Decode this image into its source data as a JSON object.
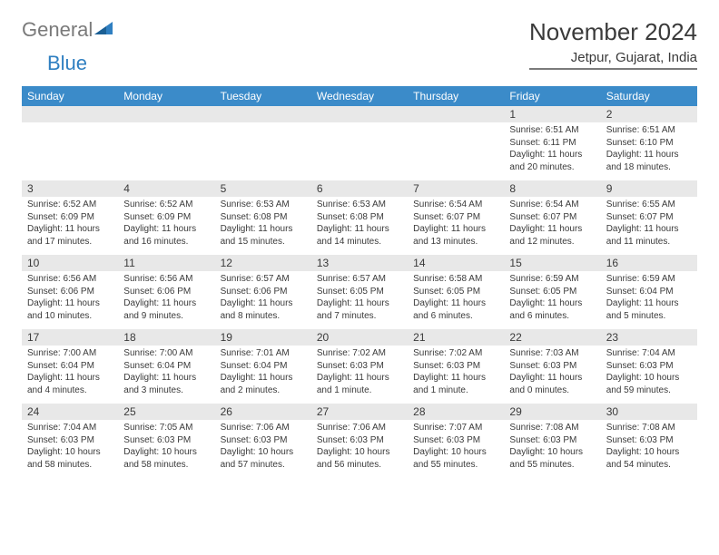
{
  "logo": {
    "word1": "General",
    "word2": "Blue"
  },
  "title": "November 2024",
  "location": "Jetpur, Gujarat, India",
  "colors": {
    "header_bg": "#3b8bc9",
    "header_text": "#ffffff",
    "daynum_bg": "#e8e8e8",
    "text": "#3a3a3a",
    "logo_gray": "#7a7a7a",
    "logo_blue": "#2f7fc1"
  },
  "weekdays": [
    "Sunday",
    "Monday",
    "Tuesday",
    "Wednesday",
    "Thursday",
    "Friday",
    "Saturday"
  ],
  "weeks": [
    [
      {
        "n": "",
        "sr": "",
        "ss": "",
        "dl": ""
      },
      {
        "n": "",
        "sr": "",
        "ss": "",
        "dl": ""
      },
      {
        "n": "",
        "sr": "",
        "ss": "",
        "dl": ""
      },
      {
        "n": "",
        "sr": "",
        "ss": "",
        "dl": ""
      },
      {
        "n": "",
        "sr": "",
        "ss": "",
        "dl": ""
      },
      {
        "n": "1",
        "sr": "Sunrise: 6:51 AM",
        "ss": "Sunset: 6:11 PM",
        "dl": "Daylight: 11 hours and 20 minutes."
      },
      {
        "n": "2",
        "sr": "Sunrise: 6:51 AM",
        "ss": "Sunset: 6:10 PM",
        "dl": "Daylight: 11 hours and 18 minutes."
      }
    ],
    [
      {
        "n": "3",
        "sr": "Sunrise: 6:52 AM",
        "ss": "Sunset: 6:09 PM",
        "dl": "Daylight: 11 hours and 17 minutes."
      },
      {
        "n": "4",
        "sr": "Sunrise: 6:52 AM",
        "ss": "Sunset: 6:09 PM",
        "dl": "Daylight: 11 hours and 16 minutes."
      },
      {
        "n": "5",
        "sr": "Sunrise: 6:53 AM",
        "ss": "Sunset: 6:08 PM",
        "dl": "Daylight: 11 hours and 15 minutes."
      },
      {
        "n": "6",
        "sr": "Sunrise: 6:53 AM",
        "ss": "Sunset: 6:08 PM",
        "dl": "Daylight: 11 hours and 14 minutes."
      },
      {
        "n": "7",
        "sr": "Sunrise: 6:54 AM",
        "ss": "Sunset: 6:07 PM",
        "dl": "Daylight: 11 hours and 13 minutes."
      },
      {
        "n": "8",
        "sr": "Sunrise: 6:54 AM",
        "ss": "Sunset: 6:07 PM",
        "dl": "Daylight: 11 hours and 12 minutes."
      },
      {
        "n": "9",
        "sr": "Sunrise: 6:55 AM",
        "ss": "Sunset: 6:07 PM",
        "dl": "Daylight: 11 hours and 11 minutes."
      }
    ],
    [
      {
        "n": "10",
        "sr": "Sunrise: 6:56 AM",
        "ss": "Sunset: 6:06 PM",
        "dl": "Daylight: 11 hours and 10 minutes."
      },
      {
        "n": "11",
        "sr": "Sunrise: 6:56 AM",
        "ss": "Sunset: 6:06 PM",
        "dl": "Daylight: 11 hours and 9 minutes."
      },
      {
        "n": "12",
        "sr": "Sunrise: 6:57 AM",
        "ss": "Sunset: 6:06 PM",
        "dl": "Daylight: 11 hours and 8 minutes."
      },
      {
        "n": "13",
        "sr": "Sunrise: 6:57 AM",
        "ss": "Sunset: 6:05 PM",
        "dl": "Daylight: 11 hours and 7 minutes."
      },
      {
        "n": "14",
        "sr": "Sunrise: 6:58 AM",
        "ss": "Sunset: 6:05 PM",
        "dl": "Daylight: 11 hours and 6 minutes."
      },
      {
        "n": "15",
        "sr": "Sunrise: 6:59 AM",
        "ss": "Sunset: 6:05 PM",
        "dl": "Daylight: 11 hours and 6 minutes."
      },
      {
        "n": "16",
        "sr": "Sunrise: 6:59 AM",
        "ss": "Sunset: 6:04 PM",
        "dl": "Daylight: 11 hours and 5 minutes."
      }
    ],
    [
      {
        "n": "17",
        "sr": "Sunrise: 7:00 AM",
        "ss": "Sunset: 6:04 PM",
        "dl": "Daylight: 11 hours and 4 minutes."
      },
      {
        "n": "18",
        "sr": "Sunrise: 7:00 AM",
        "ss": "Sunset: 6:04 PM",
        "dl": "Daylight: 11 hours and 3 minutes."
      },
      {
        "n": "19",
        "sr": "Sunrise: 7:01 AM",
        "ss": "Sunset: 6:04 PM",
        "dl": "Daylight: 11 hours and 2 minutes."
      },
      {
        "n": "20",
        "sr": "Sunrise: 7:02 AM",
        "ss": "Sunset: 6:03 PM",
        "dl": "Daylight: 11 hours and 1 minute."
      },
      {
        "n": "21",
        "sr": "Sunrise: 7:02 AM",
        "ss": "Sunset: 6:03 PM",
        "dl": "Daylight: 11 hours and 1 minute."
      },
      {
        "n": "22",
        "sr": "Sunrise: 7:03 AM",
        "ss": "Sunset: 6:03 PM",
        "dl": "Daylight: 11 hours and 0 minutes."
      },
      {
        "n": "23",
        "sr": "Sunrise: 7:04 AM",
        "ss": "Sunset: 6:03 PM",
        "dl": "Daylight: 10 hours and 59 minutes."
      }
    ],
    [
      {
        "n": "24",
        "sr": "Sunrise: 7:04 AM",
        "ss": "Sunset: 6:03 PM",
        "dl": "Daylight: 10 hours and 58 minutes."
      },
      {
        "n": "25",
        "sr": "Sunrise: 7:05 AM",
        "ss": "Sunset: 6:03 PM",
        "dl": "Daylight: 10 hours and 58 minutes."
      },
      {
        "n": "26",
        "sr": "Sunrise: 7:06 AM",
        "ss": "Sunset: 6:03 PM",
        "dl": "Daylight: 10 hours and 57 minutes."
      },
      {
        "n": "27",
        "sr": "Sunrise: 7:06 AM",
        "ss": "Sunset: 6:03 PM",
        "dl": "Daylight: 10 hours and 56 minutes."
      },
      {
        "n": "28",
        "sr": "Sunrise: 7:07 AM",
        "ss": "Sunset: 6:03 PM",
        "dl": "Daylight: 10 hours and 55 minutes."
      },
      {
        "n": "29",
        "sr": "Sunrise: 7:08 AM",
        "ss": "Sunset: 6:03 PM",
        "dl": "Daylight: 10 hours and 55 minutes."
      },
      {
        "n": "30",
        "sr": "Sunrise: 7:08 AM",
        "ss": "Sunset: 6:03 PM",
        "dl": "Daylight: 10 hours and 54 minutes."
      }
    ]
  ]
}
